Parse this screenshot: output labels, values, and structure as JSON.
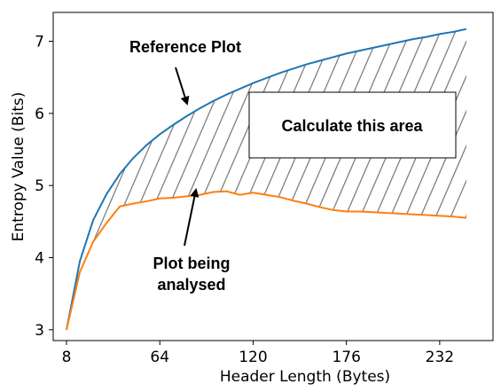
{
  "chart_data": {
    "type": "line",
    "title": "",
    "xlabel": "Header Length (Bytes)",
    "ylabel": "Entropy Value (Bits)",
    "xlim": [
      0,
      264
    ],
    "ylim": [
      2.85,
      7.4
    ],
    "xticks": [
      8,
      64,
      120,
      176,
      232
    ],
    "yticks": [
      3,
      4,
      5,
      6,
      7
    ],
    "grid": false,
    "colors": {
      "reference": "#1f77b4",
      "analysed": "#ff7f0e",
      "hatch": "#808080"
    },
    "series": [
      {
        "name": "reference",
        "x": [
          8,
          16,
          24,
          32,
          40,
          48,
          56,
          64,
          72,
          80,
          88,
          96,
          104,
          112,
          120,
          128,
          136,
          144,
          152,
          160,
          168,
          176,
          184,
          192,
          200,
          208,
          216,
          224,
          232,
          240,
          248
        ],
        "y": [
          3.0,
          3.95,
          4.52,
          4.88,
          5.16,
          5.38,
          5.56,
          5.71,
          5.84,
          5.96,
          6.07,
          6.17,
          6.26,
          6.34,
          6.42,
          6.49,
          6.56,
          6.62,
          6.68,
          6.73,
          6.78,
          6.83,
          6.87,
          6.91,
          6.95,
          6.99,
          7.03,
          7.06,
          7.1,
          7.13,
          7.17
        ]
      },
      {
        "name": "analysed",
        "x": [
          8,
          16,
          24,
          32,
          40,
          48,
          56,
          64,
          72,
          80,
          88,
          96,
          104,
          112,
          120,
          128,
          136,
          144,
          152,
          160,
          168,
          176,
          184,
          192,
          200,
          208,
          216,
          224,
          232,
          240,
          248
        ],
        "y": [
          3.0,
          3.8,
          4.22,
          4.48,
          4.71,
          4.75,
          4.78,
          4.82,
          4.83,
          4.85,
          4.87,
          4.91,
          4.92,
          4.87,
          4.9,
          4.87,
          4.84,
          4.79,
          4.75,
          4.7,
          4.66,
          4.64,
          4.64,
          4.63,
          4.62,
          4.61,
          4.6,
          4.59,
          4.58,
          4.57,
          4.55
        ]
      }
    ],
    "annotations": [
      {
        "text": "Reference Plot",
        "points_to": "reference"
      },
      {
        "text": "Calculate this area",
        "boxed": true
      },
      {
        "text": "Plot being",
        "line2": "analysed",
        "points_to": "analysed"
      }
    ]
  }
}
